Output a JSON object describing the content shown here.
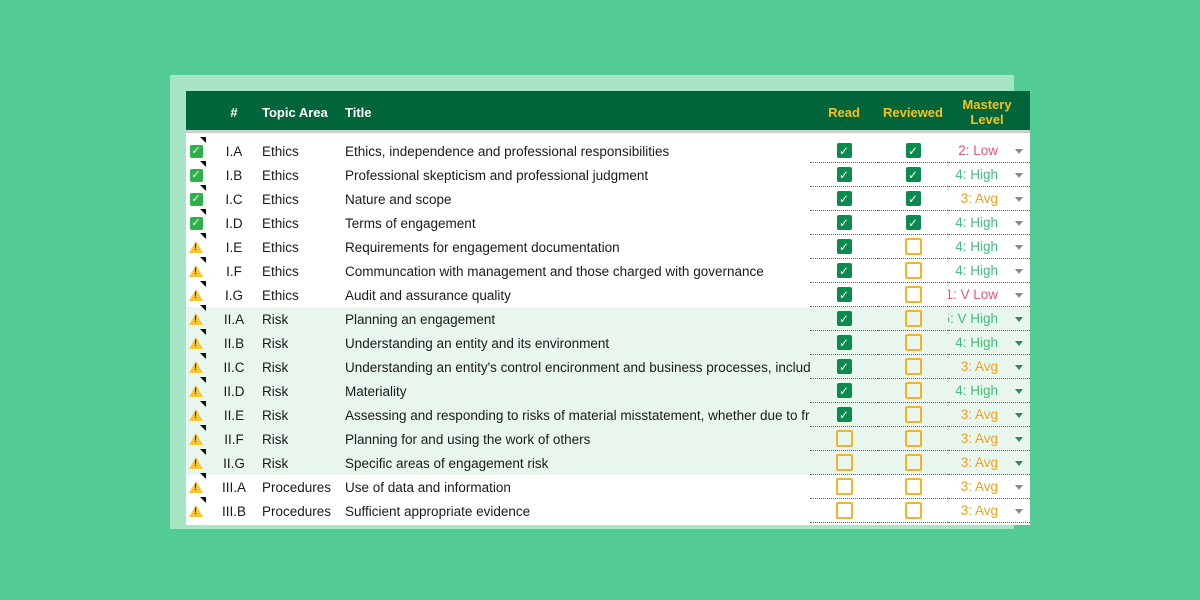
{
  "header": {
    "num": "#",
    "topic": "Topic Area",
    "title": "Title",
    "read": "Read",
    "reviewed": "Reviewed",
    "mastery_line1": "Mastery",
    "mastery_line2": "Level"
  },
  "colors": {
    "low": "#e05a6a",
    "avg": "#f0a020",
    "high": "#3fbf78",
    "header_bg": "#00653a",
    "header_gold": "#f4c21d"
  },
  "rows": [
    {
      "status": "check-icon",
      "num": "I.A",
      "topic": "Ethics",
      "title": "Ethics, independence and professional responsibilities",
      "read": true,
      "reviewed": true,
      "mastery": "2: Low",
      "level": "low",
      "alt": false
    },
    {
      "status": "check-icon",
      "num": "I.B",
      "topic": "Ethics",
      "title": "Professional skepticism and professional judgment",
      "read": true,
      "reviewed": true,
      "mastery": "4: High",
      "level": "high",
      "alt": false
    },
    {
      "status": "check-icon",
      "num": "I.C",
      "topic": "Ethics",
      "title": "Nature and scope",
      "read": true,
      "reviewed": true,
      "mastery": "3: Avg",
      "level": "avg",
      "alt": false
    },
    {
      "status": "check-icon",
      "num": "I.D",
      "topic": "Ethics",
      "title": "Terms of engagement",
      "read": true,
      "reviewed": true,
      "mastery": "4: High",
      "level": "high",
      "alt": false
    },
    {
      "status": "warning-icon",
      "num": "I.E",
      "topic": "Ethics",
      "title": "Requirements for engagement documentation",
      "read": true,
      "reviewed": false,
      "mastery": "4: High",
      "level": "high",
      "alt": false
    },
    {
      "status": "warning-icon",
      "num": "I.F",
      "topic": "Ethics",
      "title": "Communcation with management and those charged with governance",
      "read": true,
      "reviewed": false,
      "mastery": "4: High",
      "level": "high",
      "alt": false
    },
    {
      "status": "warning-icon",
      "num": "I.G",
      "topic": "Ethics",
      "title": "Audit and assurance quality",
      "read": true,
      "reviewed": false,
      "mastery": "1: V Low",
      "level": "low",
      "alt": false
    },
    {
      "status": "warning-icon",
      "num": "II.A",
      "topic": "Risk",
      "title": "Planning an engagement",
      "read": true,
      "reviewed": false,
      "mastery": "5: V High",
      "level": "high",
      "alt": true
    },
    {
      "status": "warning-icon",
      "num": "II.B",
      "topic": "Risk",
      "title": "Understanding an entity and its environment",
      "read": true,
      "reviewed": false,
      "mastery": "4: High",
      "level": "high",
      "alt": true
    },
    {
      "status": "warning-icon",
      "num": "II.C",
      "topic": "Risk",
      "title": "Understanding an entity's control encironment and business processes, including",
      "read": true,
      "reviewed": false,
      "mastery": "3: Avg",
      "level": "avg",
      "alt": true
    },
    {
      "status": "warning-icon",
      "num": "II.D",
      "topic": "Risk",
      "title": "Materiality",
      "read": true,
      "reviewed": false,
      "mastery": "4: High",
      "level": "high",
      "alt": true
    },
    {
      "status": "warning-icon",
      "num": "II.E",
      "topic": "Risk",
      "title": "Assessing and responding to risks of material misstatement, whether due to fraud",
      "read": true,
      "reviewed": false,
      "mastery": "3: Avg",
      "level": "avg",
      "alt": true
    },
    {
      "status": "warning-icon",
      "num": "II.F",
      "topic": "Risk",
      "title": "Planning for and using the work of others",
      "read": false,
      "reviewed": false,
      "mastery": "3: Avg",
      "level": "avg",
      "alt": true
    },
    {
      "status": "warning-icon",
      "num": "II.G",
      "topic": "Risk",
      "title": "Specific areas of engagement risk",
      "read": false,
      "reviewed": false,
      "mastery": "3: Avg",
      "level": "avg",
      "alt": true
    },
    {
      "status": "warning-icon",
      "num": "III.A",
      "topic": "Procedures",
      "title": "Use of data and information",
      "read": false,
      "reviewed": false,
      "mastery": "3: Avg",
      "level": "avg",
      "alt": false
    },
    {
      "status": "warning-icon",
      "num": "III.B",
      "topic": "Procedures",
      "title": "Sufficient appropriate evidence",
      "read": false,
      "reviewed": false,
      "mastery": "3: Avg",
      "level": "avg",
      "alt": false
    }
  ]
}
